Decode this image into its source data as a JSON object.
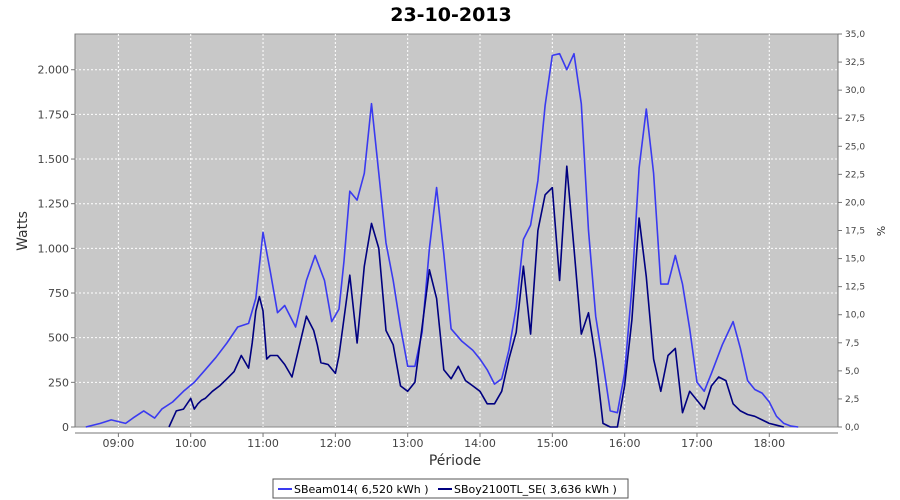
{
  "chart_data": {
    "type": "line",
    "title": "23-10-2013",
    "xlabel": "Période",
    "ylabel": "Watts",
    "y2label": "%",
    "xlim": [
      8.4,
      18.95
    ],
    "ylim": [
      0,
      2200
    ],
    "y2lim": [
      0,
      35
    ],
    "x_ticks": [
      9,
      10,
      11,
      12,
      13,
      14,
      15,
      16,
      17,
      18
    ],
    "x_tick_labels": [
      "09:00",
      "10:00",
      "11:00",
      "12:00",
      "13:00",
      "14:00",
      "15:00",
      "16:00",
      "17:00",
      "18:00"
    ],
    "y_ticks": [
      0,
      250,
      500,
      750,
      1000,
      1250,
      1500,
      1750,
      2000
    ],
    "y_tick_labels": [
      "0",
      "250",
      "500",
      "750",
      "1.000",
      "1.250",
      "1.500",
      "1.750",
      "2.000"
    ],
    "y2_ticks": [
      0,
      2.5,
      5,
      7.5,
      10,
      12.5,
      15,
      17.5,
      20,
      22.5,
      25,
      27.5,
      30,
      32.5,
      35
    ],
    "y2_tick_labels": [
      "0,0",
      "2,5",
      "5,0",
      "7,5",
      "10,0",
      "12,5",
      "15,0",
      "17,5",
      "20,0",
      "22,5",
      "25,0",
      "27,5",
      "30,0",
      "32,5",
      "35,0"
    ],
    "grid": true,
    "legend_position": "bottom",
    "series": [
      {
        "name": "SBeam014( 6,520 kWh )",
        "color": "#3a3af0",
        "x": [
          8.55,
          8.75,
          8.9,
          9.0,
          9.1,
          9.2,
          9.35,
          9.5,
          9.6,
          9.75,
          9.9,
          10.05,
          10.2,
          10.35,
          10.5,
          10.65,
          10.8,
          10.9,
          11.0,
          11.1,
          11.2,
          11.3,
          11.45,
          11.6,
          11.72,
          11.85,
          11.95,
          12.05,
          12.12,
          12.2,
          12.3,
          12.4,
          12.5,
          12.6,
          12.7,
          12.8,
          12.9,
          13.0,
          13.1,
          13.2,
          13.3,
          13.4,
          13.5,
          13.6,
          13.75,
          13.9,
          14.0,
          14.1,
          14.2,
          14.3,
          14.4,
          14.5,
          14.6,
          14.7,
          14.8,
          14.9,
          15.0,
          15.1,
          15.2,
          15.3,
          15.4,
          15.5,
          15.6,
          15.7,
          15.8,
          15.9,
          16.0,
          16.1,
          16.2,
          16.3,
          16.4,
          16.5,
          16.6,
          16.7,
          16.8,
          16.9,
          17.0,
          17.1,
          17.2,
          17.35,
          17.5,
          17.6,
          17.7,
          17.8,
          17.9,
          18.0,
          18.1,
          18.2,
          18.3,
          18.4
        ],
        "values": [
          0,
          20,
          40,
          30,
          20,
          50,
          90,
          50,
          100,
          140,
          200,
          250,
          320,
          390,
          470,
          560,
          580,
          720,
          1090,
          870,
          640,
          680,
          560,
          820,
          960,
          820,
          590,
          660,
          930,
          1320,
          1270,
          1420,
          1810,
          1420,
          1030,
          820,
          560,
          340,
          340,
          530,
          1000,
          1340,
          970,
          550,
          480,
          430,
          380,
          320,
          240,
          270,
          430,
          670,
          1050,
          1130,
          1380,
          1800,
          2080,
          2090,
          2000,
          2090,
          1810,
          1100,
          620,
          360,
          90,
          80,
          300,
          780,
          1450,
          1780,
          1420,
          800,
          800,
          960,
          800,
          550,
          250,
          200,
          300,
          460,
          590,
          440,
          260,
          210,
          190,
          140,
          60,
          20,
          5,
          0
        ]
      },
      {
        "name": "SBoy2100TL_SE( 3,636 kWh )",
        "color": "#000080",
        "x": [
          9.7,
          9.8,
          9.9,
          10.0,
          10.05,
          10.1,
          10.15,
          10.2,
          10.3,
          10.4,
          10.5,
          10.6,
          10.7,
          10.8,
          10.85,
          10.9,
          10.95,
          11.0,
          11.05,
          11.1,
          11.15,
          11.2,
          11.3,
          11.4,
          11.5,
          11.6,
          11.7,
          11.75,
          11.8,
          11.9,
          12.0,
          12.05,
          12.1,
          12.2,
          12.3,
          12.4,
          12.5,
          12.6,
          12.7,
          12.8,
          12.9,
          13.0,
          13.1,
          13.2,
          13.3,
          13.4,
          13.5,
          13.6,
          13.7,
          13.8,
          13.9,
          14.0,
          14.1,
          14.2,
          14.3,
          14.4,
          14.5,
          14.6,
          14.7,
          14.8,
          14.9,
          15.0,
          15.1,
          15.2,
          15.3,
          15.4,
          15.5,
          15.6,
          15.7,
          15.8,
          15.9,
          16.0,
          16.1,
          16.2,
          16.3,
          16.4,
          16.5,
          16.6,
          16.7,
          16.8,
          16.9,
          17.0,
          17.1,
          17.2,
          17.3,
          17.4,
          17.5,
          17.6,
          17.7,
          17.8,
          17.9,
          18.0,
          18.1,
          18.2
        ],
        "values": [
          0,
          90,
          100,
          160,
          100,
          130,
          150,
          160,
          200,
          230,
          270,
          310,
          400,
          330,
          470,
          650,
          730,
          650,
          380,
          400,
          400,
          400,
          350,
          280,
          450,
          620,
          540,
          460,
          360,
          350,
          300,
          400,
          550,
          850,
          470,
          900,
          1140,
          1000,
          540,
          460,
          230,
          200,
          250,
          560,
          880,
          720,
          320,
          270,
          340,
          260,
          230,
          200,
          130,
          130,
          200,
          380,
          530,
          900,
          520,
          1100,
          1300,
          1340,
          820,
          1460,
          1000,
          520,
          640,
          380,
          20,
          0,
          0,
          230,
          600,
          1170,
          840,
          380,
          200,
          400,
          440,
          80,
          200,
          150,
          100,
          230,
          280,
          260,
          130,
          90,
          70,
          60,
          40,
          20,
          10,
          0
        ]
      }
    ]
  }
}
